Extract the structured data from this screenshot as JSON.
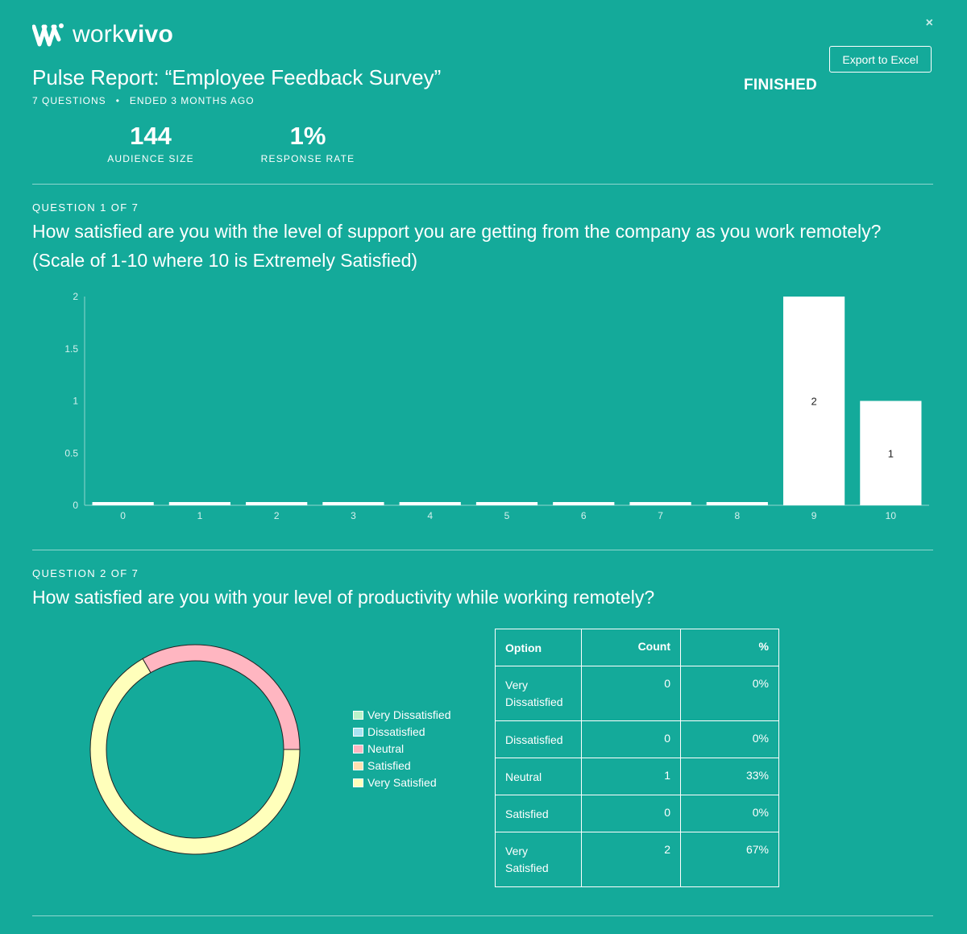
{
  "brand": {
    "name_light": "work",
    "name_bold": "vivo"
  },
  "header": {
    "title": "Pulse Report: “Employee Feedback Survey”",
    "questions_meta": "7 QUESTIONS",
    "ended_meta": "ENDED 3 MONTHS AGO",
    "status": "FINISHED",
    "export_label": "Export to Excel",
    "close_glyph": "×"
  },
  "stats": {
    "audience_value": "144",
    "audience_label": "AUDIENCE SIZE",
    "response_value": "1%",
    "response_label": "RESPONSE RATE"
  },
  "q1": {
    "number": "QUESTION 1 OF 7",
    "text": "How satisfied are you with the level of support you are getting from the company as you work remotely? (Scale of 1-10 where 10 is Extremely Satisfied)"
  },
  "q2": {
    "number": "QUESTION 2 OF 7",
    "text": "How satisfied are you with your level of productivity while working remotely?",
    "legend": [
      {
        "label": "Very Dissatisfied",
        "color": "#b9f2c9"
      },
      {
        "label": "Dissatisfied",
        "color": "#a8e3f2"
      },
      {
        "label": "Neutral",
        "color": "#ffb6c1"
      },
      {
        "label": "Satisfied",
        "color": "#ffe0b0"
      },
      {
        "label": "Very Satisfied",
        "color": "#ffffbb"
      }
    ],
    "table": {
      "headers": [
        "Option",
        "Count",
        "%"
      ],
      "rows": [
        {
          "option": "Very Dissatisfied",
          "count": "0",
          "pct": "0%"
        },
        {
          "option": "Dissatisfied",
          "count": "0",
          "pct": "0%"
        },
        {
          "option": "Neutral",
          "count": "1",
          "pct": "33%"
        },
        {
          "option": "Satisfied",
          "count": "0",
          "pct": "0%"
        },
        {
          "option": "Very Satisfied",
          "count": "2",
          "pct": "67%"
        }
      ]
    }
  },
  "chart_data": [
    {
      "type": "bar",
      "categories": [
        "0",
        "1",
        "2",
        "3",
        "4",
        "5",
        "6",
        "7",
        "8",
        "9",
        "10"
      ],
      "values": [
        0,
        0,
        0,
        0,
        0,
        0,
        0,
        0,
        0,
        2,
        1
      ],
      "data_labels": [
        "",
        "",
        "",
        "",
        "",
        "",
        "",
        "",
        "",
        "2",
        "1"
      ],
      "y_ticks": [
        "0",
        "0.5",
        "1",
        "1.5",
        "2"
      ],
      "ylim": [
        0,
        2
      ],
      "bar_color": "#ffffff",
      "grid": false
    },
    {
      "type": "pie",
      "style": "donut",
      "labels": [
        "Very Dissatisfied",
        "Dissatisfied",
        "Neutral",
        "Satisfied",
        "Very Satisfied"
      ],
      "values": [
        0,
        0,
        1,
        0,
        2
      ],
      "colors": [
        "#b9f2c9",
        "#a8e3f2",
        "#ffb6c1",
        "#ffe0b0",
        "#ffffbb"
      ],
      "legend_position": "right"
    }
  ]
}
